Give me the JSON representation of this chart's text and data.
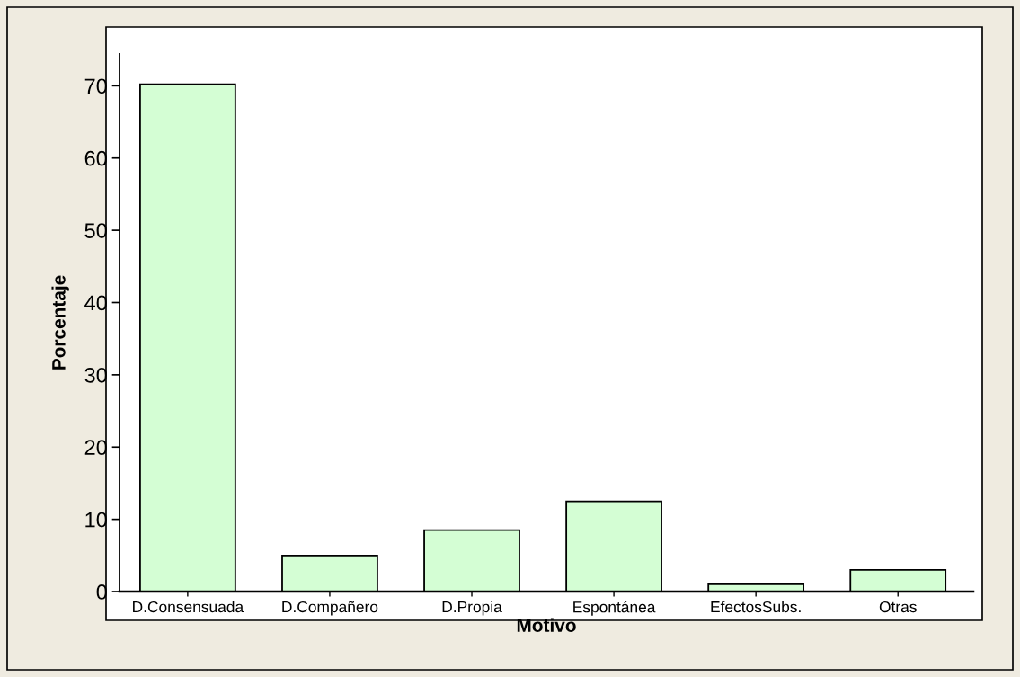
{
  "chart_data": {
    "type": "bar",
    "xlabel": "Motivo",
    "ylabel": "Porcentaje",
    "categories": [
      "D.Consensuada",
      "D.Compañero",
      "D.Propia",
      "Espontánea",
      "EfectosSubs.",
      "Otras"
    ],
    "values": [
      70.2,
      5.0,
      8.5,
      12.5,
      1.0,
      3.0
    ],
    "color": "#d4fed4",
    "ylim": [
      0,
      74.4
    ],
    "yticks": [
      0,
      10,
      20,
      30,
      40,
      50,
      60,
      70
    ],
    "grid": false
  }
}
